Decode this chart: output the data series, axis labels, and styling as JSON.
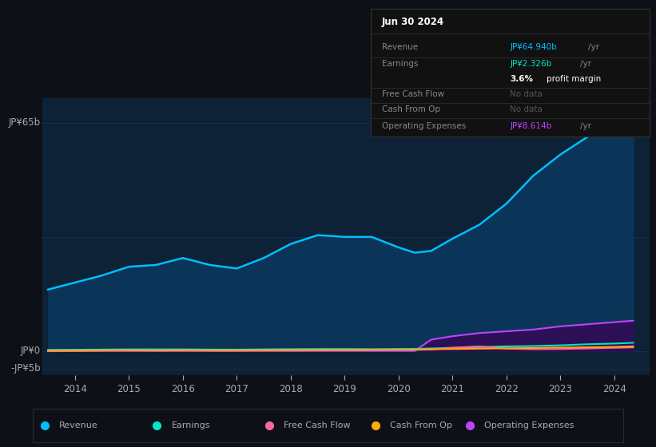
{
  "background_color": "#0d1117",
  "plot_bg_color": "#0d2137",
  "grid_color": "#1a3a5c",
  "text_color": "#aaaaaa",
  "years": [
    2013.5,
    2014.0,
    2014.5,
    2015.0,
    2015.5,
    2016.0,
    2016.5,
    2017.0,
    2017.5,
    2018.0,
    2018.5,
    2019.0,
    2019.5,
    2020.0,
    2020.3,
    2020.6,
    2021.0,
    2021.5,
    2022.0,
    2022.5,
    2023.0,
    2023.5,
    2024.0,
    2024.35
  ],
  "revenue": [
    17.5,
    19.5,
    21.5,
    24.0,
    24.5,
    26.5,
    24.5,
    23.5,
    26.5,
    30.5,
    33.0,
    32.5,
    32.5,
    29.5,
    28.0,
    28.5,
    32.0,
    36.0,
    42.0,
    50.0,
    56.0,
    61.0,
    64.5,
    64.94
  ],
  "earnings": [
    0.3,
    0.35,
    0.4,
    0.45,
    0.45,
    0.45,
    0.4,
    0.38,
    0.45,
    0.5,
    0.55,
    0.55,
    0.5,
    0.55,
    0.6,
    0.7,
    0.9,
    1.1,
    1.3,
    1.4,
    1.6,
    1.9,
    2.1,
    2.326
  ],
  "free_cash_flow": [
    -0.1,
    -0.05,
    0.05,
    0.1,
    0.05,
    0.1,
    0.05,
    0.05,
    0.1,
    0.1,
    0.15,
    0.2,
    0.25,
    0.3,
    0.3,
    0.4,
    0.9,
    1.3,
    0.65,
    0.5,
    0.55,
    0.7,
    0.9,
    1.0
  ],
  "cash_from_op": [
    0.1,
    0.15,
    0.2,
    0.25,
    0.2,
    0.25,
    0.2,
    0.2,
    0.25,
    0.3,
    0.3,
    0.3,
    0.35,
    0.4,
    0.4,
    0.5,
    0.55,
    0.65,
    0.75,
    0.85,
    0.95,
    1.05,
    1.15,
    1.3
  ],
  "op_expenses": [
    0.0,
    0.0,
    0.0,
    0.0,
    0.0,
    0.0,
    0.0,
    0.0,
    0.0,
    0.0,
    0.0,
    0.0,
    0.0,
    0.0,
    0.0,
    3.2,
    4.2,
    5.1,
    5.6,
    6.1,
    7.0,
    7.6,
    8.2,
    8.614
  ],
  "revenue_color": "#00bfff",
  "revenue_fill": "#0a3558",
  "earnings_color": "#00e5cc",
  "free_cash_flow_color": "#ff6699",
  "cash_from_op_color": "#ffaa00",
  "op_expenses_color": "#bb44ff",
  "op_expenses_fill": "#2d0f55",
  "ylim_min": -7,
  "ylim_max": 72,
  "xlim_min": 2013.4,
  "xlim_max": 2024.65,
  "xtick_positions": [
    2014,
    2015,
    2016,
    2017,
    2018,
    2019,
    2020,
    2021,
    2022,
    2023,
    2024
  ],
  "xtick_labels": [
    "2014",
    "2015",
    "2016",
    "2017",
    "2018",
    "2019",
    "2020",
    "2021",
    "2022",
    "2023",
    "2024"
  ],
  "y_label_65b": "JP¥65b",
  "y_label_0": "JP¥0",
  "y_label_neg5b": "-JP¥5b",
  "tooltip_title": "Jun 30 2024",
  "tooltip_bg": "#111111",
  "tooltip_border": "#333333",
  "tooltip_label_color": "#888888",
  "tooltip_nodata_color": "#555555",
  "legend_items": [
    {
      "label": "Revenue",
      "color": "#00bfff"
    },
    {
      "label": "Earnings",
      "color": "#00e5cc"
    },
    {
      "label": "Free Cash Flow",
      "color": "#ff6699"
    },
    {
      "label": "Cash From Op",
      "color": "#ffaa00"
    },
    {
      "label": "Operating Expenses",
      "color": "#bb44ff"
    }
  ]
}
